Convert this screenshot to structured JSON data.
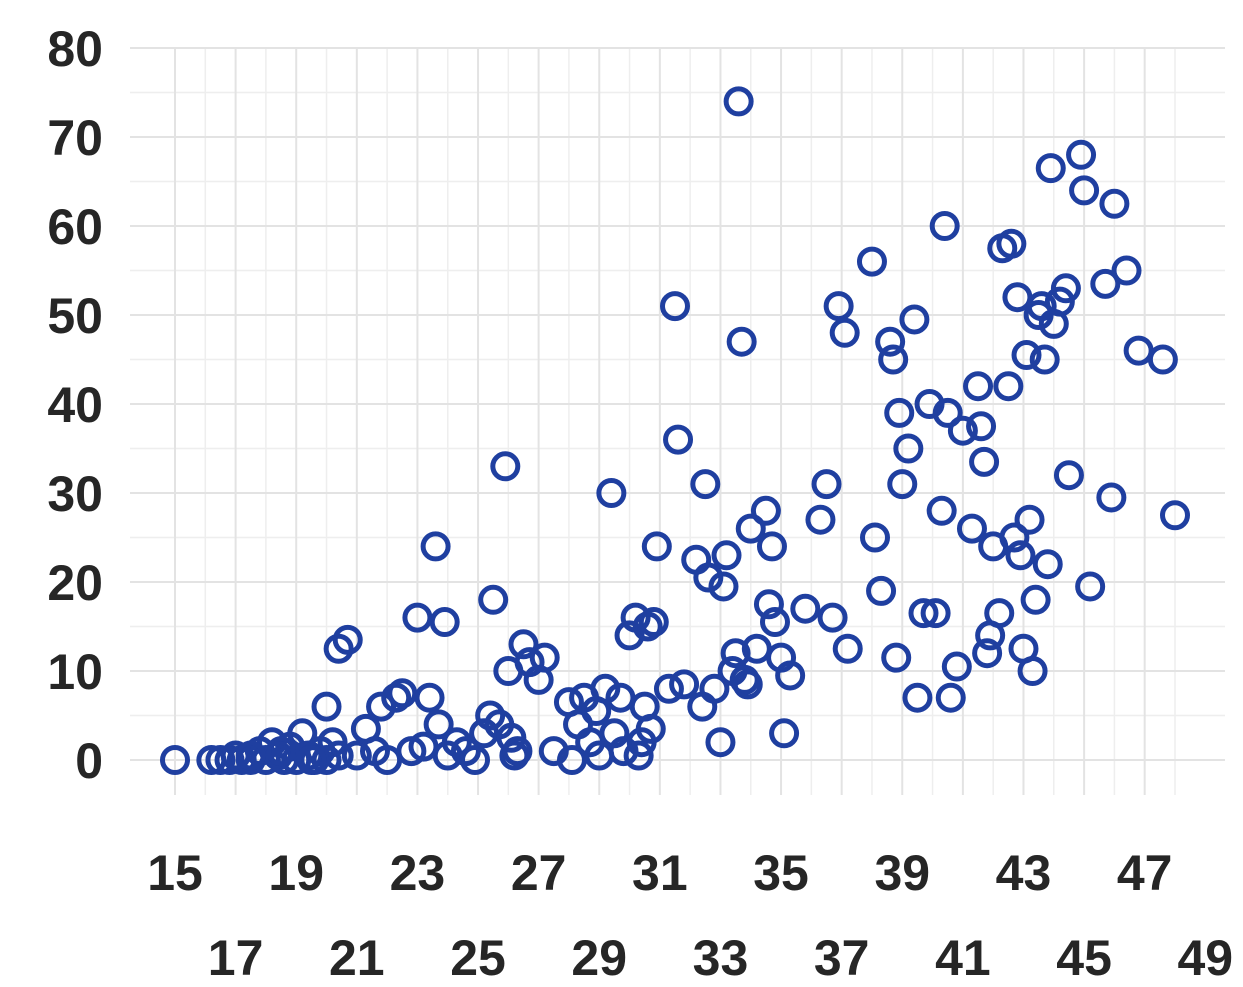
{
  "chart_data": {
    "type": "scatter",
    "title": "",
    "xlabel": "",
    "ylabel": "",
    "xlim": [
      15,
      49
    ],
    "ylim": [
      0,
      80
    ],
    "x_ticks_upper": [
      "15",
      "19",
      "23",
      "27",
      "31",
      "35",
      "39",
      "43",
      "47"
    ],
    "x_ticks_lower": [
      "17",
      "21",
      "25",
      "29",
      "33",
      "37",
      "41",
      "45",
      "49"
    ],
    "y_ticks": [
      "0",
      "10",
      "20",
      "30",
      "40",
      "50",
      "60",
      "70",
      "80"
    ],
    "grid": true,
    "marker": "hollow-circle",
    "color": "#1f3fa0",
    "series": [
      {
        "points": [
          [
            15.0,
            0.0
          ],
          [
            16.2,
            0.0
          ],
          [
            16.5,
            0.0
          ],
          [
            16.8,
            0.0
          ],
          [
            17.0,
            0.5
          ],
          [
            17.2,
            0.0
          ],
          [
            17.5,
            0.0
          ],
          [
            17.8,
            1.0
          ],
          [
            18.0,
            0.0
          ],
          [
            18.2,
            2.0
          ],
          [
            18.4,
            0.5
          ],
          [
            18.6,
            0.0
          ],
          [
            18.8,
            1.5
          ],
          [
            19.0,
            0.0
          ],
          [
            19.2,
            3.0
          ],
          [
            19.4,
            0.5
          ],
          [
            19.6,
            0.0
          ],
          [
            19.8,
            1.0
          ],
          [
            20.0,
            0.0
          ],
          [
            20.2,
            2.0
          ],
          [
            20.4,
            0.5
          ],
          [
            19.5,
            0.0
          ],
          [
            18.5,
            1.0
          ],
          [
            17.5,
            0.5
          ],
          [
            20.0,
            6.0
          ],
          [
            20.4,
            12.5
          ],
          [
            20.7,
            13.5
          ],
          [
            21.0,
            0.5
          ],
          [
            21.3,
            3.5
          ],
          [
            21.6,
            1.0
          ],
          [
            21.8,
            6.0
          ],
          [
            22.0,
            0.0
          ],
          [
            22.3,
            7.0
          ],
          [
            22.5,
            7.5
          ],
          [
            22.8,
            1.0
          ],
          [
            23.0,
            16.0
          ],
          [
            23.2,
            1.5
          ],
          [
            23.4,
            7.0
          ],
          [
            23.6,
            24.0
          ],
          [
            23.7,
            4.0
          ],
          [
            23.9,
            15.5
          ],
          [
            24.0,
            0.5
          ],
          [
            24.3,
            2.0
          ],
          [
            24.6,
            1.0
          ],
          [
            24.9,
            0.0
          ],
          [
            25.2,
            3.0
          ],
          [
            25.4,
            5.0
          ],
          [
            25.5,
            18.0
          ],
          [
            25.7,
            4.0
          ],
          [
            25.9,
            33.0
          ],
          [
            26.0,
            10.0
          ],
          [
            26.1,
            2.5
          ],
          [
            26.2,
            0.5
          ],
          [
            26.3,
            1.0
          ],
          [
            26.5,
            13.0
          ],
          [
            26.7,
            11.0
          ],
          [
            27.0,
            9.0
          ],
          [
            27.2,
            11.5
          ],
          [
            27.5,
            1.0
          ],
          [
            28.0,
            6.5
          ],
          [
            28.1,
            0.0
          ],
          [
            28.3,
            4.0
          ],
          [
            28.5,
            7.0
          ],
          [
            28.7,
            2.0
          ],
          [
            28.9,
            5.5
          ],
          [
            29.0,
            0.5
          ],
          [
            29.2,
            8.0
          ],
          [
            29.4,
            30.0
          ],
          [
            29.5,
            3.0
          ],
          [
            29.7,
            7.0
          ],
          [
            29.8,
            1.0
          ],
          [
            30.0,
            14.0
          ],
          [
            30.2,
            16.0
          ],
          [
            30.3,
            0.5
          ],
          [
            30.4,
            2.0
          ],
          [
            30.5,
            6.0
          ],
          [
            30.6,
            15.0
          ],
          [
            30.7,
            3.5
          ],
          [
            30.8,
            15.5
          ],
          [
            30.9,
            24.0
          ],
          [
            31.3,
            8.0
          ],
          [
            31.5,
            51.0
          ],
          [
            31.6,
            36.0
          ],
          [
            31.8,
            8.5
          ],
          [
            32.2,
            22.5
          ],
          [
            32.4,
            6.0
          ],
          [
            32.5,
            31.0
          ],
          [
            32.6,
            20.5
          ],
          [
            32.8,
            8.0
          ],
          [
            33.0,
            2.0
          ],
          [
            33.1,
            19.5
          ],
          [
            33.2,
            23.0
          ],
          [
            33.4,
            10.0
          ],
          [
            33.5,
            12.0
          ],
          [
            33.6,
            74.0
          ],
          [
            33.7,
            47.0
          ],
          [
            33.8,
            9.0
          ],
          [
            33.9,
            8.5
          ],
          [
            34.0,
            26.0
          ],
          [
            34.2,
            12.5
          ],
          [
            34.5,
            28.0
          ],
          [
            34.7,
            24.0
          ],
          [
            34.8,
            15.5
          ],
          [
            35.0,
            11.5
          ],
          [
            35.1,
            3.0
          ],
          [
            35.3,
            9.5
          ],
          [
            34.6,
            17.5
          ],
          [
            35.8,
            17.0
          ],
          [
            36.3,
            27.0
          ],
          [
            36.5,
            31.0
          ],
          [
            36.7,
            16.0
          ],
          [
            36.9,
            51.0
          ],
          [
            37.1,
            48.0
          ],
          [
            37.2,
            12.5
          ],
          [
            38.0,
            56.0
          ],
          [
            38.1,
            25.0
          ],
          [
            38.3,
            19.0
          ],
          [
            38.6,
            47.0
          ],
          [
            38.7,
            45.0
          ],
          [
            38.8,
            11.5
          ],
          [
            38.9,
            39.0
          ],
          [
            39.0,
            31.0
          ],
          [
            39.2,
            35.0
          ],
          [
            39.4,
            49.5
          ],
          [
            39.5,
            7.0
          ],
          [
            39.7,
            16.5
          ],
          [
            39.9,
            40.0
          ],
          [
            40.1,
            16.5
          ],
          [
            40.3,
            28.0
          ],
          [
            40.4,
            60.0
          ],
          [
            40.5,
            39.0
          ],
          [
            40.6,
            7.0
          ],
          [
            40.8,
            10.5
          ],
          [
            41.0,
            37.0
          ],
          [
            41.3,
            26.0
          ],
          [
            41.5,
            42.0
          ],
          [
            41.6,
            37.5
          ],
          [
            41.7,
            33.5
          ],
          [
            41.8,
            12.0
          ],
          [
            41.9,
            14.0
          ],
          [
            42.0,
            24.0
          ],
          [
            42.2,
            16.5
          ],
          [
            42.3,
            57.5
          ],
          [
            42.5,
            42.0
          ],
          [
            42.6,
            58.0
          ],
          [
            42.7,
            25.0
          ],
          [
            42.8,
            52.0
          ],
          [
            42.9,
            23.0
          ],
          [
            43.0,
            12.5
          ],
          [
            43.1,
            45.5
          ],
          [
            43.2,
            27.0
          ],
          [
            43.3,
            10.0
          ],
          [
            43.4,
            18.0
          ],
          [
            43.5,
            50.0
          ],
          [
            43.6,
            51.0
          ],
          [
            43.7,
            45.0
          ],
          [
            43.8,
            22.0
          ],
          [
            43.9,
            66.5
          ],
          [
            44.0,
            49.0
          ],
          [
            44.2,
            51.5
          ],
          [
            44.4,
            53.0
          ],
          [
            44.5,
            32.0
          ],
          [
            44.9,
            68.0
          ],
          [
            45.0,
            64.0
          ],
          [
            45.2,
            19.5
          ],
          [
            45.7,
            53.5
          ],
          [
            45.9,
            29.5
          ],
          [
            46.0,
            62.5
          ],
          [
            46.4,
            55.0
          ],
          [
            46.8,
            46.0
          ],
          [
            47.6,
            45.0
          ],
          [
            48.0,
            27.5
          ]
        ]
      }
    ]
  }
}
